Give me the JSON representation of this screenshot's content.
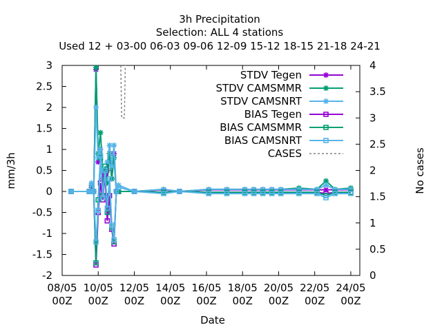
{
  "chart_data": {
    "type": "line",
    "title": "3h Precipitation",
    "subtitle": "Selection: ALL      4 stations",
    "used_line": "Used  12 + 03-00 06-03 09-06 12-09 15-12 18-15 21-18 24-21",
    "xlabel": "Date",
    "ylabel": "mm/3h",
    "y2label": "No cases",
    "ylim": [
      -2,
      3
    ],
    "y2lim": [
      0,
      4
    ],
    "xlim_days": [
      8,
      24.5
    ],
    "grid": false,
    "legend_position": "top-right",
    "x_ticks": [
      {
        "day": 8,
        "line1": "08/05",
        "line2": "00Z"
      },
      {
        "day": 10,
        "line1": "10/05",
        "line2": "00Z"
      },
      {
        "day": 12,
        "line1": "12/05",
        "line2": "00Z"
      },
      {
        "day": 14,
        "line1": "14/05",
        "line2": "00Z"
      },
      {
        "day": 16,
        "line1": "16/05",
        "line2": "00Z"
      },
      {
        "day": 18,
        "line1": "18/05",
        "line2": "00Z"
      },
      {
        "day": 20,
        "line1": "20/05",
        "line2": "00Z"
      },
      {
        "day": 22,
        "line1": "22/05",
        "line2": "00Z"
      },
      {
        "day": 24,
        "line1": "24/05",
        "line2": "00Z"
      }
    ],
    "y_ticks": [
      {
        "v": 3,
        "label": "3"
      },
      {
        "v": 2.5,
        "label": "2.5"
      },
      {
        "v": 2,
        "label": "2"
      },
      {
        "v": 1.5,
        "label": "1.5"
      },
      {
        "v": 1,
        "label": "1"
      },
      {
        "v": 0.5,
        "label": "0.5"
      },
      {
        "v": 0,
        "label": "0"
      },
      {
        "v": -0.5,
        "label": "-0.5"
      },
      {
        "v": -1,
        "label": "-1"
      },
      {
        "v": -1.5,
        "label": "-1.5"
      },
      {
        "v": -2,
        "label": "-2"
      }
    ],
    "y2_ticks": [
      {
        "v": 4,
        "label": "4"
      },
      {
        "v": 3.5,
        "label": "3.5"
      },
      {
        "v": 3,
        "label": "3"
      },
      {
        "v": 2.5,
        "label": "2.5"
      },
      {
        "v": 2,
        "label": "2"
      },
      {
        "v": 1.5,
        "label": "1.5"
      },
      {
        "v": 1,
        "label": "1"
      },
      {
        "v": 0.5,
        "label": "0.5"
      },
      {
        "v": 0,
        "label": "0"
      }
    ],
    "series": [
      {
        "name": "STDV Tegen",
        "color": "#9400d3",
        "marker": "x",
        "axis": "y",
        "x": [
          8.5,
          9.5,
          9.625,
          9.75,
          9.875,
          10.0,
          10.125,
          10.25,
          10.375,
          10.5,
          10.625,
          10.75,
          10.875,
          11.0,
          11.125,
          12.0,
          13.625,
          14.5,
          16.125,
          17.125,
          18.125,
          18.625,
          19.125,
          19.625,
          20.125,
          21.125,
          22.125,
          22.625,
          23.125,
          24.0
        ],
        "y": [
          0.0,
          0.0,
          0.1,
          0.0,
          2.9,
          0.7,
          1.0,
          0.3,
          0.5,
          0.5,
          0.9,
          0.3,
          0.9,
          0.0,
          0.0,
          0.0,
          0.04,
          0.0,
          0.04,
          0.04,
          0.04,
          0.04,
          0.04,
          0.04,
          0.04,
          0.04,
          0.04,
          0.04,
          0.04,
          0.04
        ]
      },
      {
        "name": "STDV CAMSMMR",
        "color": "#009e73",
        "marker": "x",
        "axis": "y",
        "x": [
          8.5,
          9.5,
          9.625,
          9.75,
          9.875,
          10.0,
          10.125,
          10.25,
          10.375,
          10.5,
          10.625,
          10.75,
          10.875,
          11.0,
          11.125,
          12.0,
          13.625,
          14.5,
          16.125,
          17.125,
          18.125,
          18.625,
          19.125,
          19.625,
          20.125,
          21.125,
          22.125,
          22.625,
          23.125,
          24.0
        ],
        "y": [
          0.0,
          0.0,
          0.15,
          0.0,
          2.95,
          0.9,
          1.4,
          0.5,
          0.3,
          0.2,
          0.9,
          0.3,
          0.8,
          0.0,
          0.0,
          0.0,
          0.05,
          0.0,
          0.05,
          0.05,
          0.05,
          0.05,
          0.05,
          0.05,
          0.05,
          0.08,
          0.05,
          0.25,
          0.05,
          0.08
        ]
      },
      {
        "name": "STDV CAMSNRT",
        "color": "#56b4e9",
        "marker": "x",
        "axis": "y",
        "x": [
          8.5,
          9.5,
          9.625,
          9.75,
          9.875,
          10.0,
          10.125,
          10.25,
          10.375,
          10.5,
          10.625,
          10.75,
          10.875,
          11.0,
          11.125,
          12.0,
          13.625,
          14.5,
          16.125,
          17.125,
          18.125,
          18.625,
          19.125,
          19.625,
          20.125,
          21.125,
          22.125,
          22.625,
          23.125,
          24.0
        ],
        "y": [
          0.0,
          0.0,
          0.2,
          0.0,
          2.0,
          0.8,
          1.0,
          0.4,
          0.4,
          0.7,
          1.1,
          0.6,
          1.1,
          0.0,
          0.15,
          0.0,
          0.05,
          0.0,
          0.05,
          0.05,
          0.05,
          0.05,
          0.05,
          0.05,
          0.05,
          0.05,
          0.05,
          0.15,
          0.05,
          0.05
        ]
      },
      {
        "name": "BIAS Tegen",
        "color": "#9400d3",
        "marker": "square",
        "axis": "y",
        "x": [
          8.5,
          9.5,
          9.625,
          9.75,
          9.875,
          10.0,
          10.125,
          10.25,
          10.375,
          10.5,
          10.625,
          10.75,
          10.875,
          11.0,
          11.125,
          12.0,
          13.625,
          14.5,
          16.125,
          17.125,
          18.125,
          18.625,
          19.125,
          19.625,
          20.125,
          21.125,
          22.125,
          22.625,
          23.125,
          24.0
        ],
        "y": [
          0.0,
          0.0,
          0.0,
          0.0,
          -1.75,
          -0.5,
          0.2,
          -0.2,
          0.4,
          -0.7,
          -0.1,
          -0.9,
          -1.25,
          0.0,
          0.0,
          0.0,
          -0.02,
          0.0,
          -0.02,
          -0.02,
          -0.02,
          -0.02,
          -0.02,
          -0.02,
          -0.02,
          -0.02,
          -0.02,
          -0.05,
          -0.02,
          -0.02
        ]
      },
      {
        "name": "BIAS CAMSMMR",
        "color": "#009e73",
        "marker": "square",
        "axis": "y",
        "x": [
          8.5,
          9.5,
          9.625,
          9.75,
          9.875,
          10.0,
          10.125,
          10.25,
          10.375,
          10.5,
          10.625,
          10.75,
          10.875,
          11.0,
          11.125,
          12.0,
          13.625,
          14.5,
          16.125,
          17.125,
          18.125,
          18.625,
          19.125,
          19.625,
          20.125,
          21.125,
          22.125,
          22.625,
          23.125,
          24.0
        ],
        "y": [
          0.0,
          0.0,
          0.0,
          0.0,
          -1.7,
          -0.2,
          0.8,
          -0.1,
          0.6,
          -0.5,
          0.3,
          -0.85,
          -1.2,
          0.0,
          0.0,
          0.0,
          -0.02,
          0.0,
          -0.02,
          -0.02,
          -0.02,
          -0.02,
          -0.02,
          -0.02,
          -0.02,
          -0.02,
          -0.02,
          -0.1,
          -0.02,
          -0.02
        ]
      },
      {
        "name": "BIAS CAMSNRT",
        "color": "#56b4e9",
        "marker": "square",
        "axis": "y",
        "x": [
          8.5,
          9.5,
          9.625,
          9.75,
          9.875,
          10.0,
          10.125,
          10.25,
          10.375,
          10.5,
          10.625,
          10.75,
          10.875,
          11.0,
          11.125,
          12.0,
          13.625,
          14.5,
          16.125,
          17.125,
          18.125,
          18.625,
          19.125,
          19.625,
          20.125,
          21.125,
          22.125,
          22.625,
          23.125,
          24.0
        ],
        "y": [
          0.0,
          0.0,
          0.0,
          0.0,
          -1.2,
          -0.45,
          0.85,
          -0.15,
          0.5,
          -0.4,
          0.3,
          -0.8,
          -1.15,
          0.0,
          0.1,
          0.0,
          -0.05,
          0.0,
          -0.05,
          -0.05,
          -0.05,
          -0.05,
          -0.05,
          -0.05,
          -0.05,
          -0.05,
          -0.05,
          -0.15,
          -0.05,
          -0.05
        ]
      },
      {
        "name": "CASES",
        "color": "#808080",
        "marker": "none",
        "dash": true,
        "axis": "y2",
        "x": [
          11.25,
          11.3,
          11.375,
          11.45,
          11.5
        ],
        "y": [
          4.0,
          3.0,
          3.0,
          3.0,
          4.0
        ]
      }
    ]
  }
}
